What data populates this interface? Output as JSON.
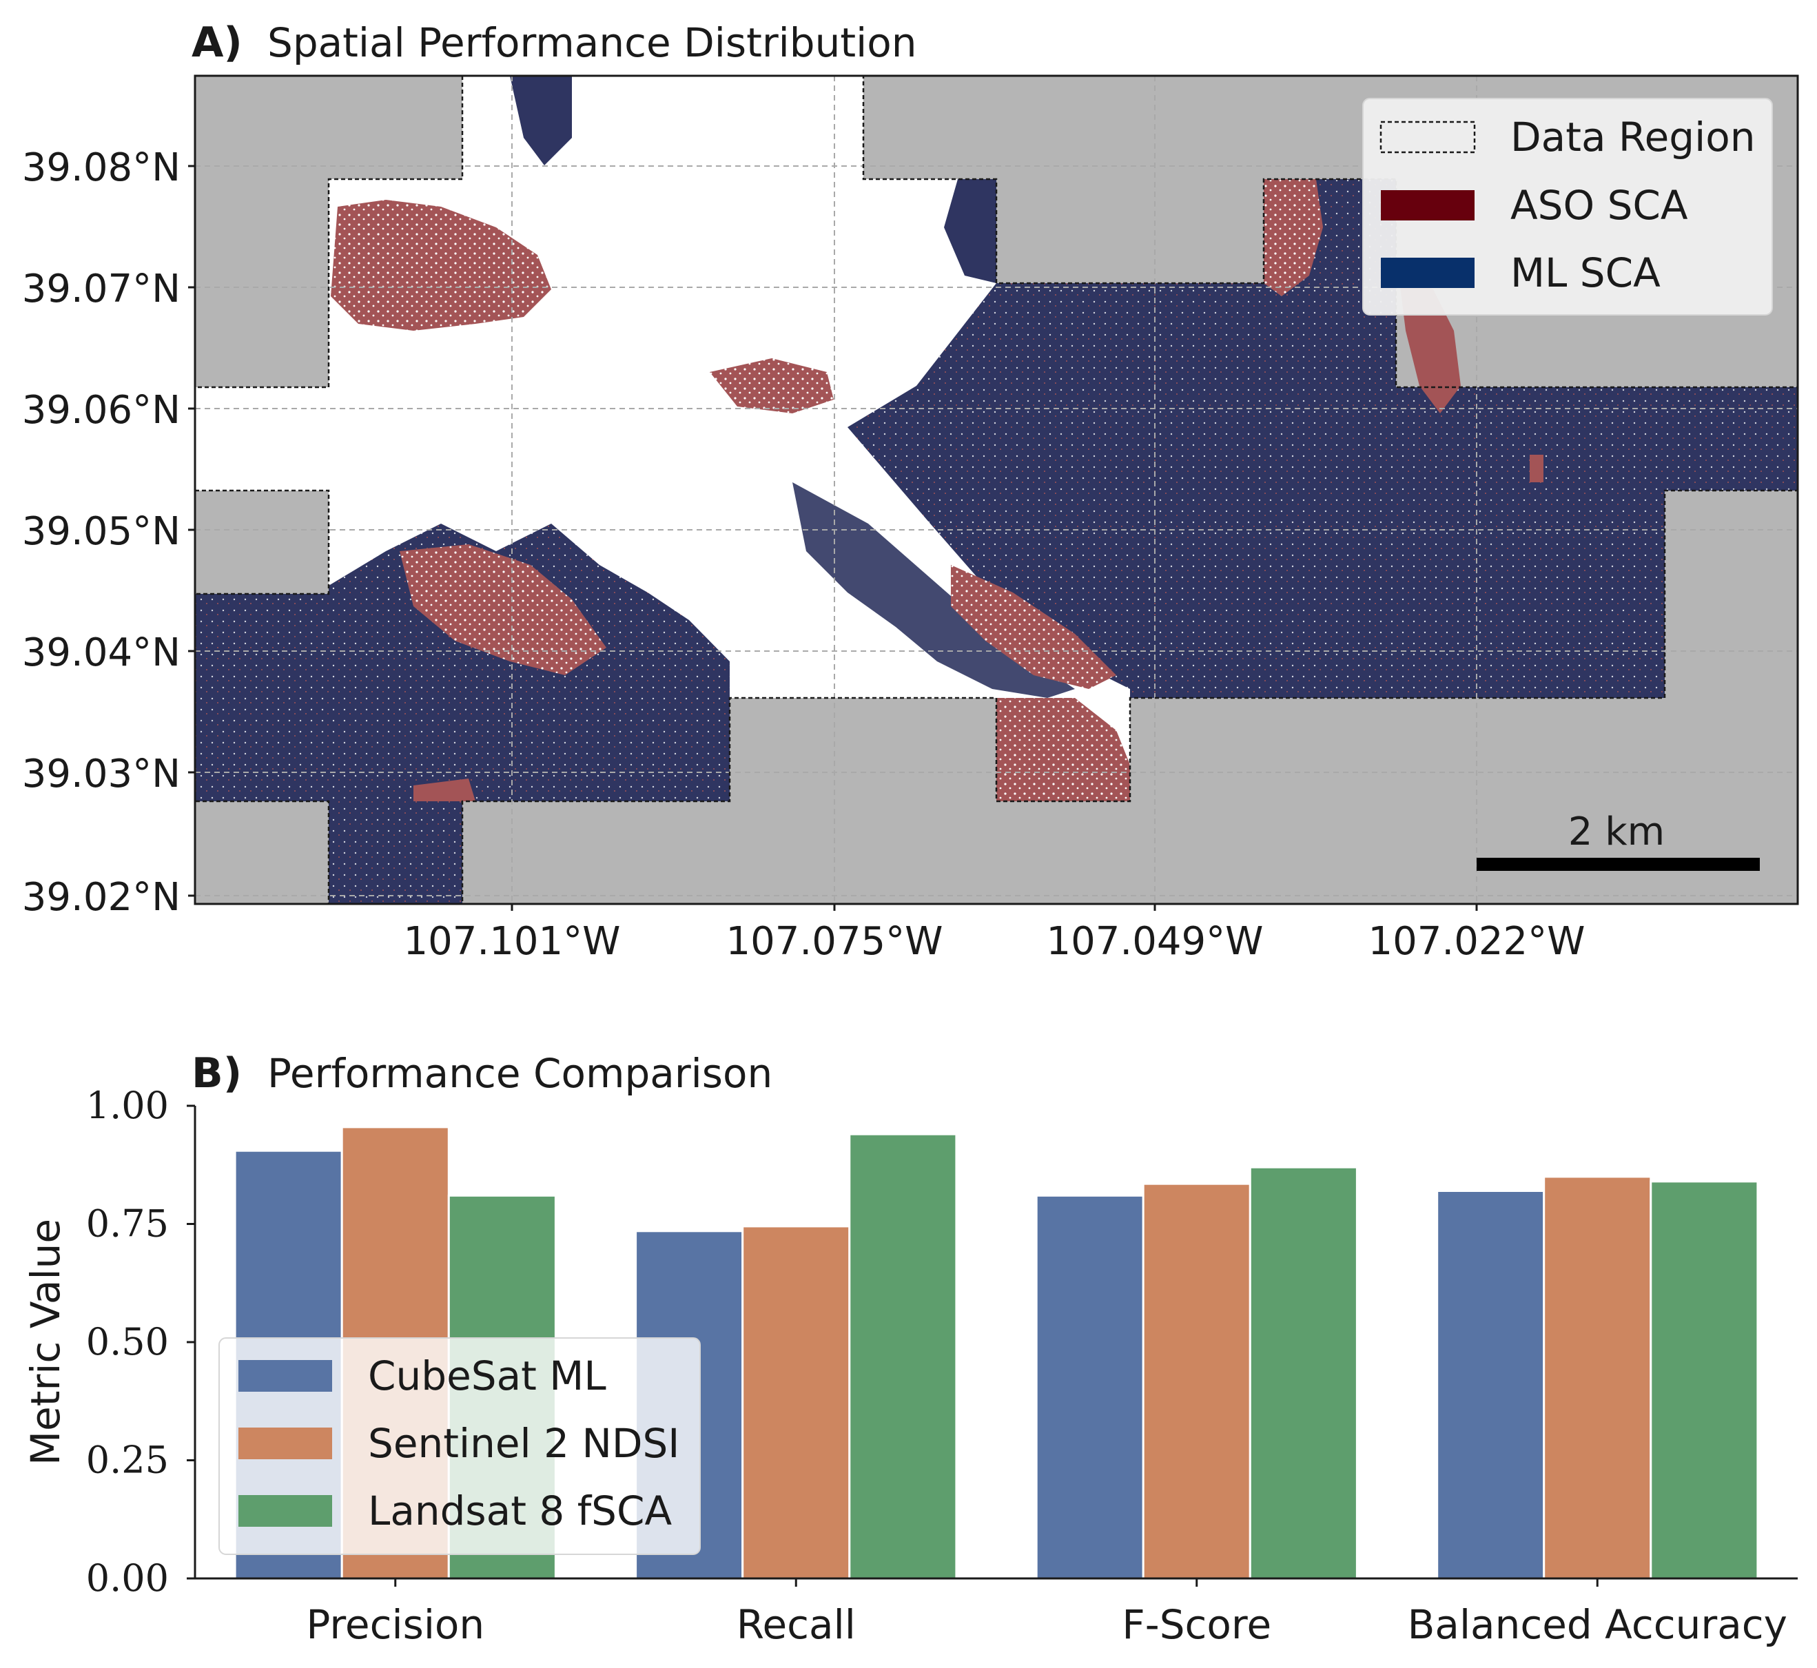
{
  "panel_a": {
    "label": "A)",
    "title": "Spatial Performance Distribution",
    "y_ticks": [
      "39.08°N",
      "39.07°N",
      "39.06°N",
      "39.05°N",
      "39.04°N",
      "39.03°N",
      "39.02°N"
    ],
    "x_ticks": [
      "107.101°W",
      "107.075°W",
      "107.049°W",
      "107.022°W"
    ],
    "legend": [
      {
        "label": "Data Region",
        "swatch": "dashed-outline"
      },
      {
        "label": "ASO SCA",
        "color": "#67000d"
      },
      {
        "label": "ML SCA",
        "color": "#08306b"
      }
    ],
    "scalebar_label": "2 km",
    "colors": {
      "no_data": "#b5b5b5",
      "aso": "#a35456",
      "ml": "#2f3561",
      "both": "#ffffff"
    },
    "grid": true
  },
  "panel_b": {
    "label": "B)",
    "title": "Performance Comparison"
  },
  "chart_data": {
    "type": "bar",
    "title": "Performance Comparison",
    "xlabel": "",
    "ylabel": "Metric Value",
    "ylim": [
      0,
      1.0
    ],
    "y_ticks": [
      "0.00",
      "0.25",
      "0.50",
      "0.75",
      "1.00"
    ],
    "categories": [
      "Precision",
      "Recall",
      "F-Score",
      "Balanced Accuracy"
    ],
    "series": [
      {
        "name": "CubeSat ML",
        "color": "#5874a4",
        "values": [
          0.905,
          0.735,
          0.81,
          0.82
        ]
      },
      {
        "name": "Sentinel 2 NDSI",
        "color": "#cd8660",
        "values": [
          0.955,
          0.745,
          0.835,
          0.85
        ]
      },
      {
        "name": "Landsat 8 fSCA",
        "color": "#5e9e6d",
        "values": [
          0.81,
          0.94,
          0.87,
          0.84
        ]
      }
    ],
    "legend_position": "lower-left",
    "grid": false
  }
}
